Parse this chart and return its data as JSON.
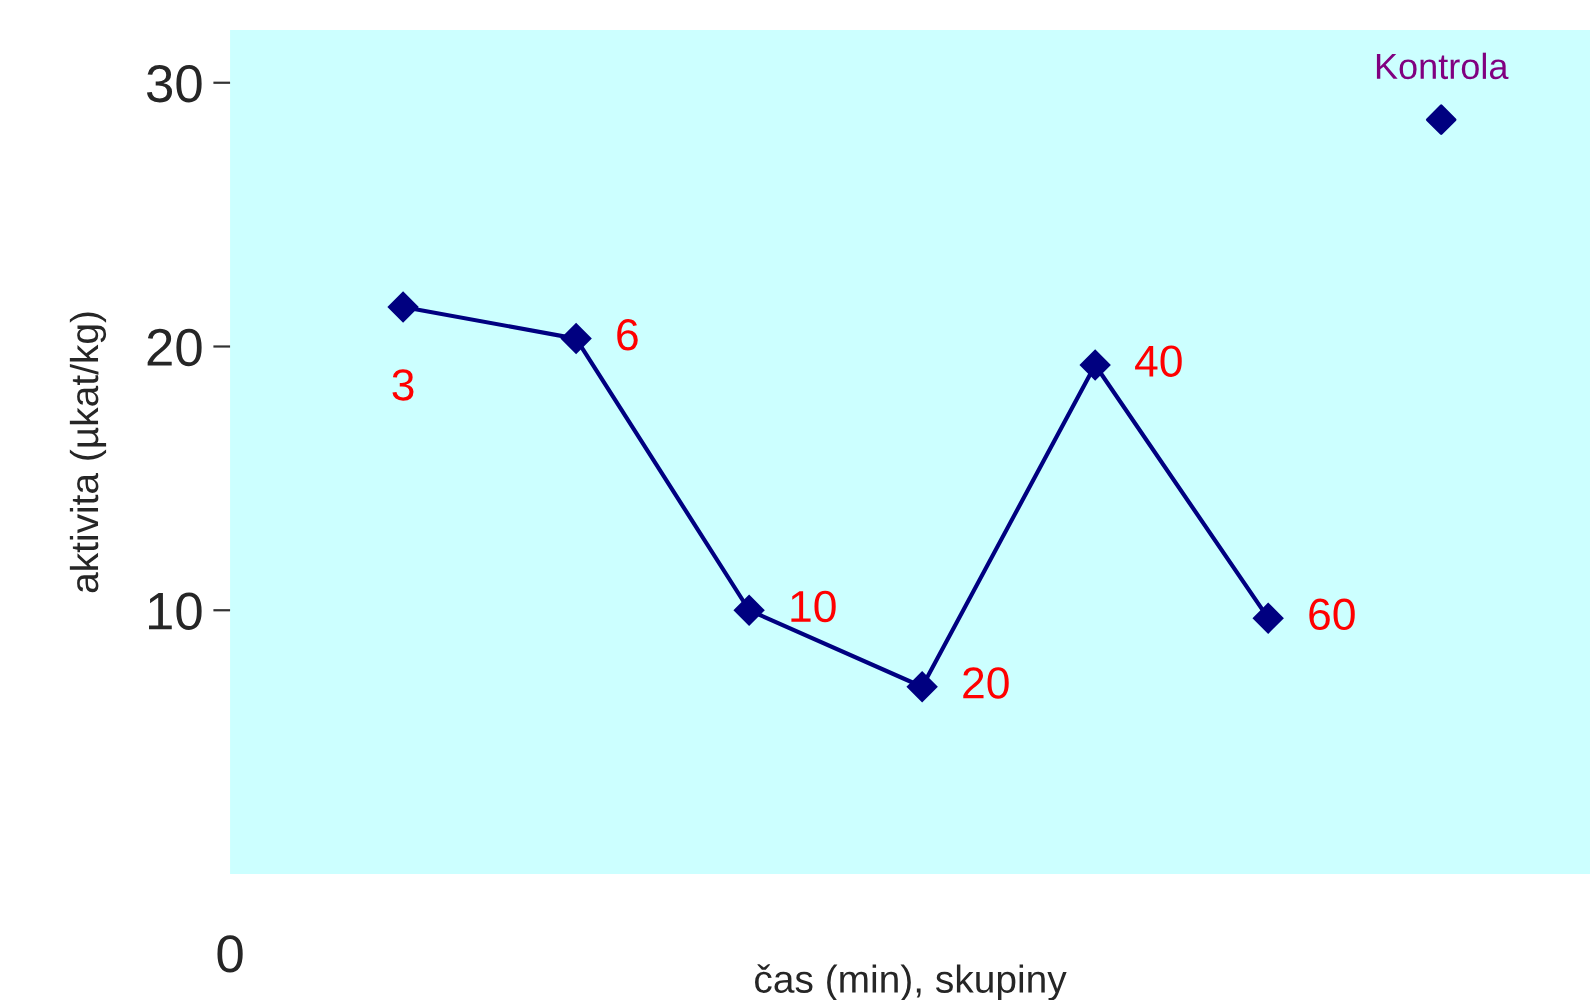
{
  "chart_data": {
    "type": "line",
    "xlabel": "čas (min), skupiny",
    "ylabel": "aktivita (µkat/kg)",
    "categories": [
      "3",
      "6",
      "10",
      "20",
      "40",
      "60",
      "Kontrola"
    ],
    "series": [
      {
        "color": "#000080",
        "values": [
          21.5,
          20.3,
          10.0,
          7.1,
          19.3,
          9.7,
          null
        ]
      },
      {
        "type": "scatter",
        "color": "#000080",
        "values": [
          null,
          null,
          null,
          null,
          null,
          null,
          28.6
        ]
      }
    ],
    "ylim": [
      0,
      32
    ],
    "yticks": [
      10,
      20,
      30
    ],
    "annotations": [
      "0"
    ],
    "marker": "diamond",
    "line_style": "solid",
    "grid": false,
    "legend": false
  }
}
